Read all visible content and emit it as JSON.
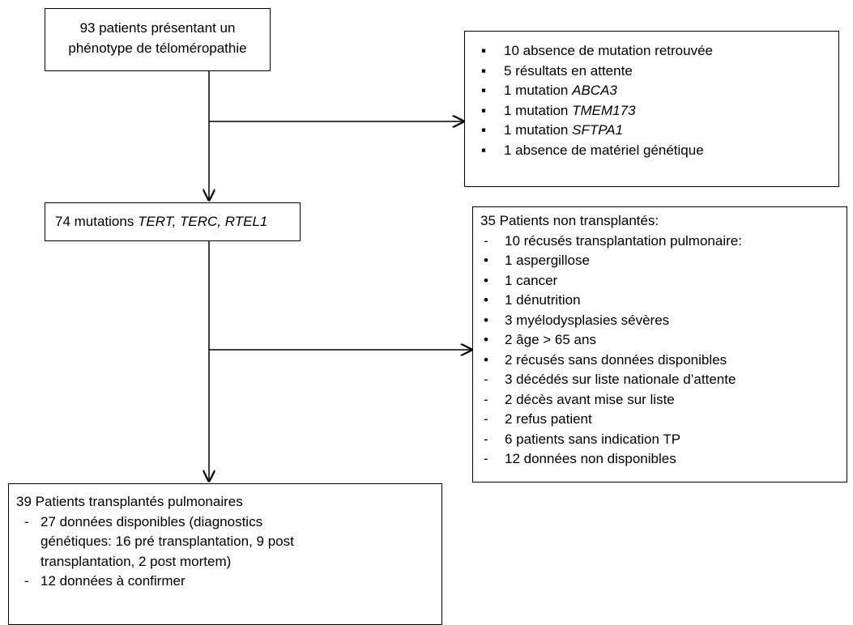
{
  "nodes": [
    {
      "lines": [
        "93 patients présentant un",
        "phénotype de téloméropathie"
      ]
    },
    {
      "items": [
        {
          "marker": "▪",
          "text": "10 absence de mutation retrouvée"
        },
        {
          "marker": "▪",
          "text": "5 résultats en attente"
        },
        {
          "marker": "▪",
          "text": "1 mutation ",
          "gene": "ABCA3"
        },
        {
          "marker": "▪",
          "text": "1 mutation ",
          "gene": "TMEM173"
        },
        {
          "marker": "▪",
          "text": "1 mutation ",
          "gene": "SFTPA1"
        },
        {
          "marker": "▪",
          "text": "1 absence de matériel génétique"
        }
      ]
    },
    {
      "text": "74  mutations ",
      "gene": "TERT, TERC, RTEL1"
    },
    {
      "title": "35 Patients non transplantés:",
      "items": [
        {
          "marker": "-",
          "text": "10 récusés transplantation pulmonaire:"
        },
        {
          "marker": "•",
          "text": "1 aspergillose"
        },
        {
          "marker": "•",
          "text": "1 cancer"
        },
        {
          "marker": "•",
          "text": "1 dénutrition"
        },
        {
          "marker": "•",
          "text": "3 myélodysplasies sévères"
        },
        {
          "marker": "•",
          "text": "2 âge > 65 ans"
        },
        {
          "marker": "•",
          "text": "2 récusés sans données disponibles"
        },
        {
          "marker": "-",
          "text": "3 décédés sur liste nationale d’attente"
        },
        {
          "marker": "-",
          "text": "2 décès avant mise sur liste"
        },
        {
          "marker": "-",
          "text": "2 refus patient"
        },
        {
          "marker": "-",
          "text": "6 patients sans indication TP"
        },
        {
          "marker": "-",
          "text": "12 données non disponibles"
        }
      ]
    },
    {
      "title": "39 Patients transplantés pulmonaires",
      "items": [
        {
          "marker": "-",
          "lines": [
            "27  données disponibles (diagnostics",
            "génétiques: 16 pré transplantation, 9 post",
            "transplantation, 2 post mortem)"
          ]
        },
        {
          "marker": "-",
          "lines": [
            "12 données à confirmer"
          ]
        }
      ]
    }
  ]
}
